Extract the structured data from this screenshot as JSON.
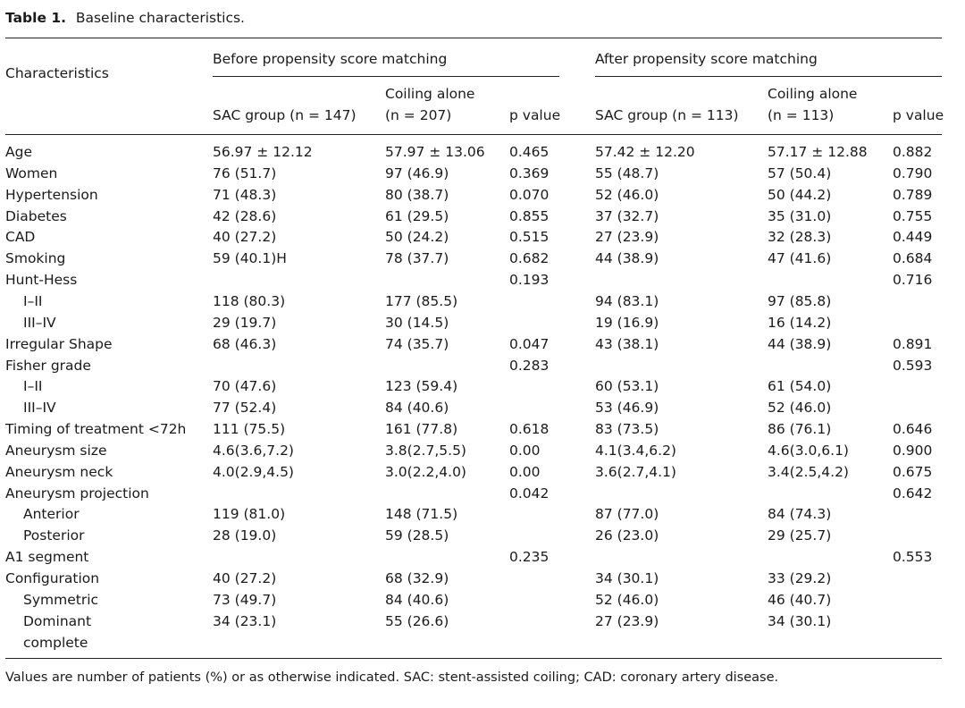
{
  "caption": {
    "label": "Table 1.",
    "text": "Baseline characteristics."
  },
  "header": {
    "characteristics": "Characteristics",
    "before_group": "Before propensity score matching",
    "after_group": "After propensity score matching",
    "before": {
      "sac": "SAC group (n = 147)",
      "coil_line1": "Coiling alone",
      "coil_line2": "(n = 207)",
      "p": "p value"
    },
    "after": {
      "sac": "SAC group (n = 113)",
      "coil_line1": "Coiling alone",
      "coil_line2": "(n = 113)",
      "p": "p value"
    }
  },
  "rows": [
    {
      "label": "Age",
      "indent": false,
      "b_sac": "56.97 ± 12.12",
      "b_coil": "57.97 ± 13.06",
      "b_p": "0.465",
      "a_sac": "57.42 ± 12.20",
      "a_coil": "57.17 ± 12.88",
      "a_p": "0.882"
    },
    {
      "label": "Women",
      "indent": false,
      "b_sac": "76 (51.7)",
      "b_coil": "97 (46.9)",
      "b_p": "0.369",
      "a_sac": "55 (48.7)",
      "a_coil": "57 (50.4)",
      "a_p": "0.790"
    },
    {
      "label": "Hypertension",
      "indent": false,
      "b_sac": "71 (48.3)",
      "b_coil": "80 (38.7)",
      "b_p": "0.070",
      "a_sac": "52 (46.0)",
      "a_coil": "50 (44.2)",
      "a_p": "0.789"
    },
    {
      "label": "Diabetes",
      "indent": false,
      "b_sac": "42 (28.6)",
      "b_coil": "61 (29.5)",
      "b_p": "0.855",
      "a_sac": "37 (32.7)",
      "a_coil": "35 (31.0)",
      "a_p": "0.755"
    },
    {
      "label": "CAD",
      "indent": false,
      "b_sac": "40 (27.2)",
      "b_coil": "50 (24.2)",
      "b_p": "0.515",
      "a_sac": "27 (23.9)",
      "a_coil": "32 (28.3)",
      "a_p": "0.449"
    },
    {
      "label": "Smoking",
      "indent": false,
      "b_sac": "59 (40.1)H",
      "b_coil": "78 (37.7)",
      "b_p": "0.682",
      "a_sac": "44 (38.9)",
      "a_coil": "47 (41.6)",
      "a_p": "0.684"
    },
    {
      "label": "Hunt-Hess",
      "indent": false,
      "b_sac": "",
      "b_coil": "",
      "b_p": "0.193",
      "a_sac": "",
      "a_coil": "",
      "a_p": "0.716"
    },
    {
      "label": "I–II",
      "indent": true,
      "b_sac": "118 (80.3)",
      "b_coil": "177 (85.5)",
      "b_p": "",
      "a_sac": "94 (83.1)",
      "a_coil": "97 (85.8)",
      "a_p": ""
    },
    {
      "label": "III–IV",
      "indent": true,
      "b_sac": "29 (19.7)",
      "b_coil": "30 (14.5)",
      "b_p": "",
      "a_sac": "19 (16.9)",
      "a_coil": "16 (14.2)",
      "a_p": ""
    },
    {
      "label": "Irregular Shape",
      "indent": false,
      "b_sac": "68 (46.3)",
      "b_coil": "74 (35.7)",
      "b_p": "0.047",
      "a_sac": "43 (38.1)",
      "a_coil": "44 (38.9)",
      "a_p": "0.891"
    },
    {
      "label": "Fisher grade",
      "indent": false,
      "b_sac": "",
      "b_coil": "",
      "b_p": "0.283",
      "a_sac": "",
      "a_coil": "",
      "a_p": "0.593"
    },
    {
      "label": "I–II",
      "indent": true,
      "b_sac": "70 (47.6)",
      "b_coil": "123 (59.4)",
      "b_p": "",
      "a_sac": "60 (53.1)",
      "a_coil": "61 (54.0)",
      "a_p": ""
    },
    {
      "label": "III–IV",
      "indent": true,
      "b_sac": "77 (52.4)",
      "b_coil": "84 (40.6)",
      "b_p": "",
      "a_sac": "53 (46.9)",
      "a_coil": "52 (46.0)",
      "a_p": ""
    },
    {
      "label": "Timing of treatment <72h",
      "indent": false,
      "b_sac": "111 (75.5)",
      "b_coil": "161 (77.8)",
      "b_p": "0.618",
      "a_sac": "83 (73.5)",
      "a_coil": "86 (76.1)",
      "a_p": "0.646"
    },
    {
      "label": "Aneurysm size",
      "indent": false,
      "b_sac": "4.6(3.6,7.2)",
      "b_coil": "3.8(2.7,5.5)",
      "b_p": "0.00",
      "a_sac": "4.1(3.4,6.2)",
      "a_coil": "4.6(3.0,6.1)",
      "a_p": "0.900"
    },
    {
      "label": "Aneurysm neck",
      "indent": false,
      "b_sac": "4.0(2.9,4.5)",
      "b_coil": "3.0(2.2,4.0)",
      "b_p": "0.00",
      "a_sac": "3.6(2.7,4.1)",
      "a_coil": "3.4(2.5,4.2)",
      "a_p": "0.675"
    },
    {
      "label": "Aneurysm projection",
      "indent": false,
      "b_sac": "",
      "b_coil": "",
      "b_p": "0.042",
      "a_sac": "",
      "a_coil": "",
      "a_p": "0.642"
    },
    {
      "label": "Anterior",
      "indent": true,
      "b_sac": "119 (81.0)",
      "b_coil": "148 (71.5)",
      "b_p": "",
      "a_sac": "87 (77.0)",
      "a_coil": "84 (74.3)",
      "a_p": ""
    },
    {
      "label": "Posterior",
      "indent": true,
      "b_sac": "28 (19.0)",
      "b_coil": "59 (28.5)",
      "b_p": "",
      "a_sac": "26 (23.0)",
      "a_coil": "29 (25.7)",
      "a_p": ""
    },
    {
      "label": "A1 segment",
      "indent": false,
      "b_sac": "",
      "b_coil": "",
      "b_p": "0.235",
      "a_sac": "",
      "a_coil": "",
      "a_p": "0.553"
    },
    {
      "label": "Configuration",
      "indent": false,
      "b_sac": "40 (27.2)",
      "b_coil": "68 (32.9)",
      "b_p": "",
      "a_sac": "34 (30.1)",
      "a_coil": "33 (29.2)",
      "a_p": ""
    },
    {
      "label": "Symmetric",
      "indent": true,
      "b_sac": "73 (49.7)",
      "b_coil": "84 (40.6)",
      "b_p": "",
      "a_sac": "52 (46.0)",
      "a_coil": "46 (40.7)",
      "a_p": ""
    },
    {
      "label": "Dominant",
      "indent": true,
      "b_sac": "34 (23.1)",
      "b_coil": "55 (26.6)",
      "b_p": "",
      "a_sac": "27 (23.9)",
      "a_coil": "34 (30.1)",
      "a_p": ""
    },
    {
      "label": "complete",
      "indent": true,
      "b_sac": "",
      "b_coil": "",
      "b_p": "",
      "a_sac": "",
      "a_coil": "",
      "a_p": ""
    }
  ],
  "footnote": "Values are number of patients (%) or as otherwise indicated. SAC: stent-assisted coiling; CAD: coronary artery disease."
}
